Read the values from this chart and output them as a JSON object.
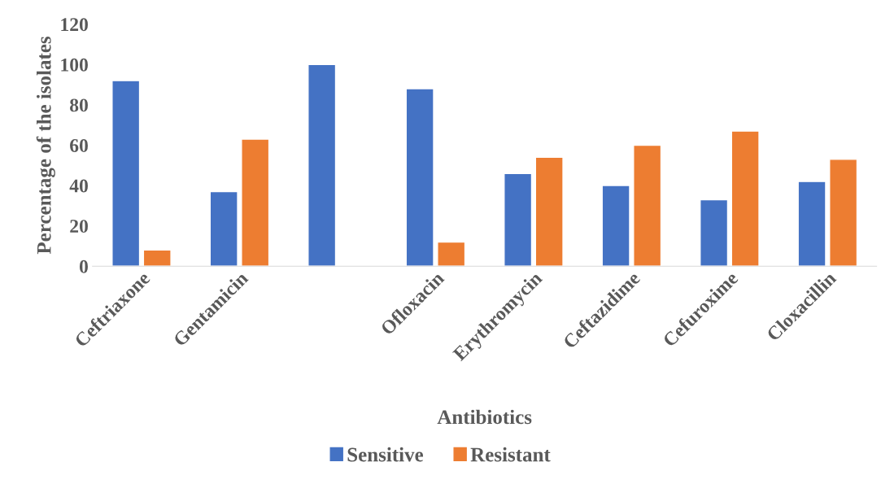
{
  "chart_data": {
    "type": "bar",
    "xlabel": "Antibiotics",
    "ylabel": "Percentage of the isolates",
    "categories": [
      "Ceftriaxone",
      "Gentamicin",
      null,
      "Ofloxacin",
      "Erythromycin",
      "Ceftazidime",
      "Cefuroxime",
      "Cloxacillin"
    ],
    "series": [
      {
        "name": "Sensitive",
        "color": "#4472c4",
        "values": [
          92,
          37,
          100,
          88,
          46,
          40,
          33,
          42
        ]
      },
      {
        "name": "Resistant",
        "color": "#ed7d31",
        "values": [
          8,
          63,
          null,
          12,
          54,
          60,
          67,
          53
        ]
      }
    ],
    "ylim": [
      0,
      120
    ],
    "yticks": [
      0,
      20,
      40,
      60,
      80,
      100,
      120
    ],
    "grid": false,
    "legend": "bottom"
  }
}
